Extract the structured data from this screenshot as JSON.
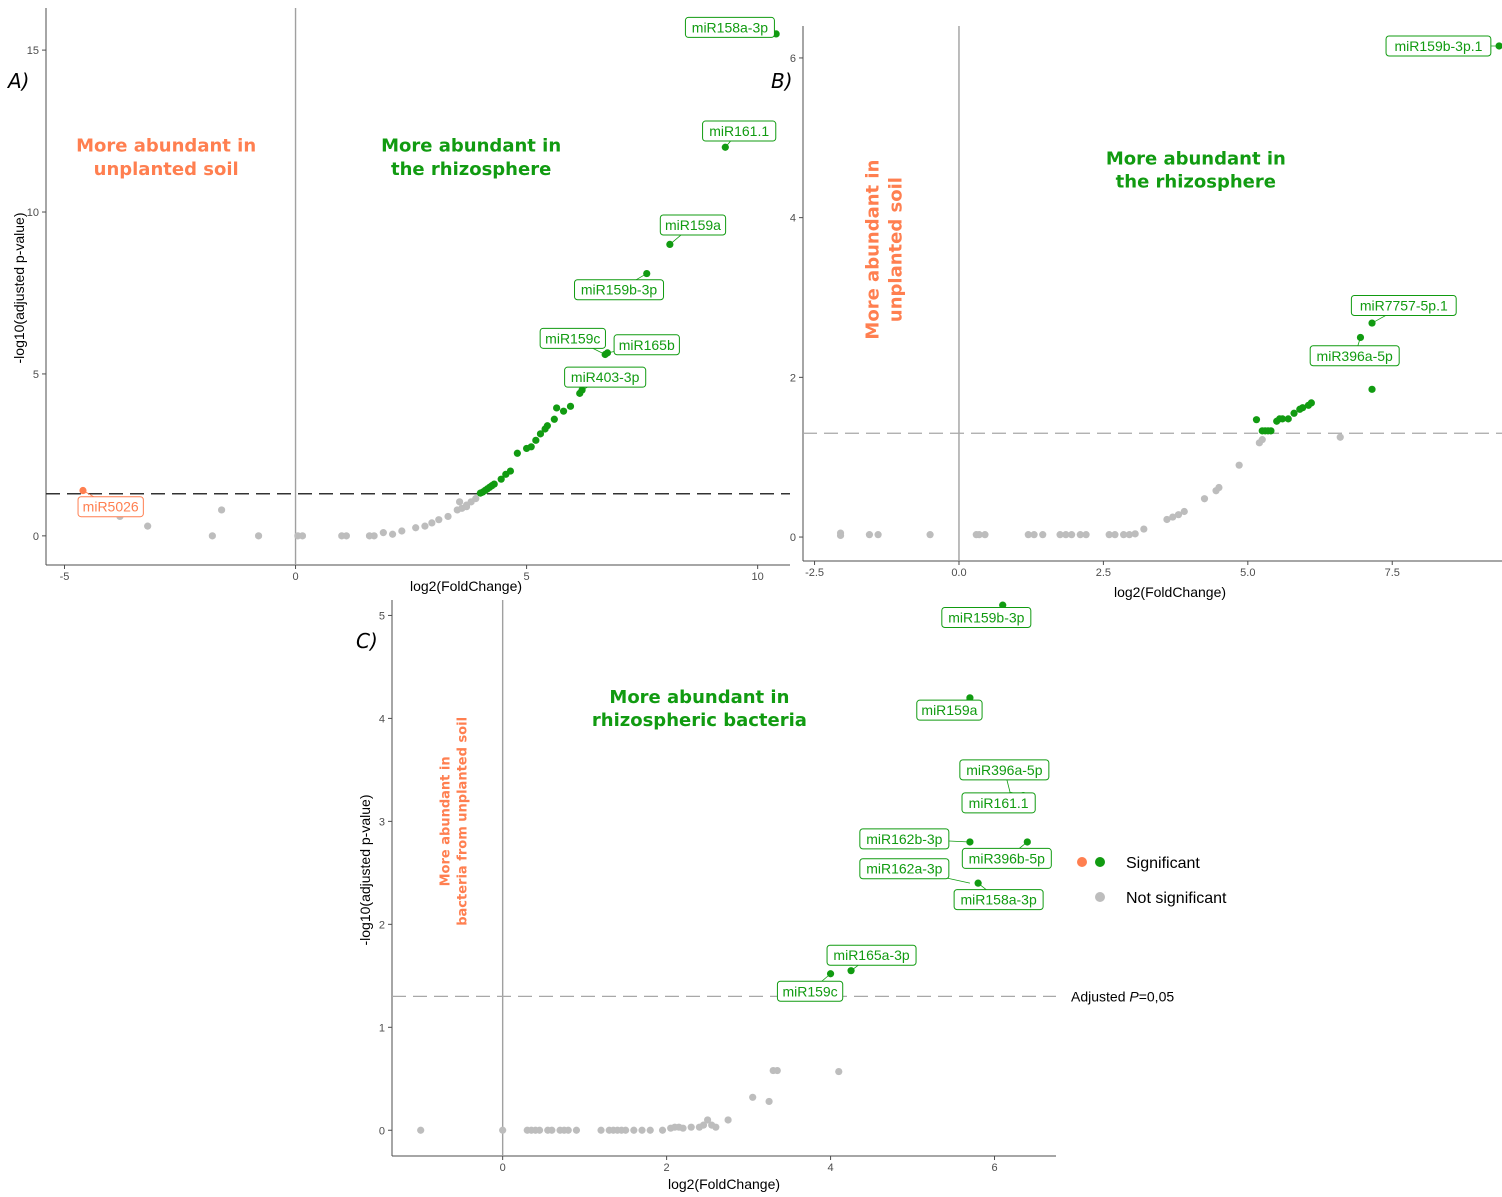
{
  "colors": {
    "significant": "#119b11",
    "significant_down": "#ff7f50",
    "not_significant": "#bdbdbd",
    "axis": "#4d4d4d",
    "threshold_solid": "#333333",
    "threshold_light": "#a8a8a8"
  },
  "legend": {
    "significant": "Significant",
    "not_significant": "Not significant"
  },
  "threshold_label": {
    "prefix": "Adjusted ",
    "italic": "P",
    "suffix": "=0,05"
  },
  "chart_data": [
    {
      "panel": "A)",
      "type": "scatter",
      "xlabel": "log2(FoldChange)",
      "ylabel": "-log10(adjusted p-value)",
      "xlim": [
        -5.4,
        10.7
      ],
      "ylim": [
        -0.9,
        16.3
      ],
      "xticks": [
        -5,
        0,
        5,
        10
      ],
      "yticks": [
        0,
        5,
        10,
        15
      ],
      "threshold": 1.3,
      "threshold_style": "dark",
      "region_labels": [
        {
          "lines": [
            "More abundant in",
            "unplanted soil"
          ],
          "color": "#ff7f50",
          "x": -2.8,
          "y": 11.7,
          "size": 18,
          "rotate": false
        },
        {
          "lines": [
            "More abundant in",
            "the rhizosphere"
          ],
          "color": "#119b11",
          "x": 3.8,
          "y": 11.7,
          "size": 18,
          "rotate": false
        }
      ],
      "points_sig_down": [
        [
          -4.6,
          1.4
        ]
      ],
      "points_sig": [
        [
          10.4,
          15.5
        ],
        [
          9.3,
          12.0
        ],
        [
          8.1,
          9.0
        ],
        [
          7.6,
          8.1
        ],
        [
          6.75,
          5.65
        ],
        [
          6.7,
          5.6
        ],
        [
          6.2,
          4.5
        ],
        [
          6.15,
          4.4
        ],
        [
          5.95,
          4.0
        ],
        [
          5.8,
          3.85
        ],
        [
          5.65,
          3.95
        ],
        [
          5.6,
          3.6
        ],
        [
          5.45,
          3.4
        ],
        [
          5.4,
          3.3
        ],
        [
          5.3,
          3.15
        ],
        [
          5.2,
          2.95
        ],
        [
          5.1,
          2.75
        ],
        [
          5.0,
          2.7
        ],
        [
          4.8,
          2.55
        ],
        [
          4.65,
          2.0
        ],
        [
          4.55,
          1.9
        ],
        [
          4.45,
          1.75
        ],
        [
          4.3,
          1.6
        ],
        [
          4.25,
          1.55
        ],
        [
          4.2,
          1.5
        ],
        [
          4.15,
          1.45
        ],
        [
          4.1,
          1.4
        ],
        [
          4.05,
          1.35
        ],
        [
          4.0,
          1.32
        ]
      ],
      "points_ns": [
        [
          -3.2,
          0.3
        ],
        [
          -1.6,
          0.8
        ],
        [
          -1.8,
          0.0
        ],
        [
          -0.8,
          0.0
        ],
        [
          0.05,
          0.0
        ],
        [
          0.15,
          0.0
        ],
        [
          1.0,
          0.0
        ],
        [
          1.1,
          0.0
        ],
        [
          1.6,
          0.0
        ],
        [
          1.7,
          0.0
        ],
        [
          1.9,
          0.1
        ],
        [
          2.1,
          0.05
        ],
        [
          2.3,
          0.15
        ],
        [
          2.6,
          0.25
        ],
        [
          2.8,
          0.3
        ],
        [
          2.95,
          0.4
        ],
        [
          3.1,
          0.5
        ],
        [
          3.3,
          0.6
        ],
        [
          3.5,
          0.8
        ],
        [
          3.6,
          0.85
        ],
        [
          3.7,
          0.95
        ],
        [
          3.8,
          1.05
        ],
        [
          3.9,
          1.15
        ],
        [
          3.55,
          1.05
        ],
        [
          3.7,
          0.9
        ],
        [
          -3.8,
          0.6
        ]
      ],
      "labels": [
        {
          "text": "miR5026",
          "px": -4.6,
          "py": 1.4,
          "lx": -4.0,
          "ly": 0.9,
          "color": "#ff7f50"
        },
        {
          "text": "miR158a-3p",
          "px": 10.4,
          "py": 15.5,
          "lx": 9.4,
          "ly": 15.7,
          "color": "#119b11"
        },
        {
          "text": "miR161.1",
          "px": 9.3,
          "py": 12.0,
          "lx": 9.6,
          "ly": 12.5,
          "color": "#119b11"
        },
        {
          "text": "miR159a",
          "px": 8.1,
          "py": 9.0,
          "lx": 8.6,
          "ly": 9.6,
          "color": "#119b11"
        },
        {
          "text": "miR159b-3p",
          "px": 7.6,
          "py": 8.1,
          "lx": 7.0,
          "ly": 7.6,
          "color": "#119b11"
        },
        {
          "text": "miR159c",
          "px": 6.7,
          "py": 5.6,
          "lx": 6.0,
          "ly": 6.1,
          "color": "#119b11"
        },
        {
          "text": "miR165b",
          "px": 6.75,
          "py": 5.65,
          "lx": 7.6,
          "ly": 5.9,
          "color": "#119b11"
        },
        {
          "text": "miR403-3p",
          "px": 6.2,
          "py": 4.5,
          "lx": 6.7,
          "ly": 4.9,
          "color": "#119b11"
        }
      ]
    },
    {
      "panel": "B)",
      "type": "scatter",
      "xlabel": "log2(FoldChange)",
      "ylabel": "",
      "xlim": [
        -2.7,
        9.4
      ],
      "ylim": [
        -0.3,
        6.4
      ],
      "xticks": [
        -2.5,
        0.0,
        2.5,
        5.0,
        7.5
      ],
      "tick_decimals": 1,
      "yticks": [
        0,
        2,
        4,
        6
      ],
      "threshold": 1.3,
      "threshold_style": "light",
      "region_labels": [
        {
          "lines": [
            "More abundant in",
            "unplanted soil"
          ],
          "color": "#ff7f50",
          "x": -1.3,
          "y": 3.6,
          "size": 18,
          "rotate": true
        },
        {
          "lines": [
            "More abundant in",
            "the rhizosphere"
          ],
          "color": "#119b11",
          "x": 4.1,
          "y": 4.6,
          "size": 18,
          "rotate": false
        }
      ],
      "points_sig_down": [],
      "points_sig": [
        [
          9.35,
          6.15
        ],
        [
          7.15,
          2.68
        ],
        [
          6.95,
          2.5
        ],
        [
          7.15,
          1.85
        ],
        [
          6.1,
          1.68
        ],
        [
          6.05,
          1.65
        ],
        [
          5.95,
          1.62
        ],
        [
          5.9,
          1.6
        ],
        [
          5.8,
          1.55
        ],
        [
          5.7,
          1.48
        ],
        [
          5.6,
          1.48
        ],
        [
          5.55,
          1.48
        ],
        [
          5.5,
          1.45
        ],
        [
          5.4,
          1.33
        ],
        [
          5.35,
          1.33
        ],
        [
          5.3,
          1.33
        ],
        [
          5.25,
          1.33
        ],
        [
          5.15,
          1.47
        ]
      ],
      "points_ns": [
        [
          -2.05,
          0.05
        ],
        [
          -2.05,
          0.02
        ],
        [
          -1.55,
          0.03
        ],
        [
          -1.4,
          0.03
        ],
        [
          -0.5,
          0.03
        ],
        [
          0.3,
          0.03
        ],
        [
          0.35,
          0.03
        ],
        [
          0.45,
          0.03
        ],
        [
          1.2,
          0.03
        ],
        [
          1.3,
          0.03
        ],
        [
          1.45,
          0.03
        ],
        [
          1.75,
          0.03
        ],
        [
          1.85,
          0.03
        ],
        [
          1.95,
          0.03
        ],
        [
          2.1,
          0.03
        ],
        [
          2.2,
          0.03
        ],
        [
          2.6,
          0.03
        ],
        [
          2.7,
          0.03
        ],
        [
          2.85,
          0.03
        ],
        [
          2.95,
          0.03
        ],
        [
          3.05,
          0.04
        ],
        [
          3.2,
          0.1
        ],
        [
          3.6,
          0.22
        ],
        [
          3.7,
          0.25
        ],
        [
          3.8,
          0.28
        ],
        [
          3.9,
          0.32
        ],
        [
          4.25,
          0.48
        ],
        [
          4.45,
          0.58
        ],
        [
          4.5,
          0.62
        ],
        [
          4.85,
          0.9
        ],
        [
          5.2,
          1.18
        ],
        [
          5.25,
          1.22
        ],
        [
          6.6,
          1.25
        ]
      ],
      "labels": [
        {
          "text": "miR159b-3p.1",
          "px": 9.35,
          "py": 6.15,
          "lx": 8.3,
          "ly": 6.15,
          "color": "#119b11"
        },
        {
          "text": "miR7757-5p.1",
          "px": 7.15,
          "py": 2.68,
          "lx": 7.7,
          "ly": 2.9,
          "color": "#119b11"
        },
        {
          "text": "miR396a-5p",
          "px": 6.95,
          "py": 2.5,
          "lx": 6.85,
          "ly": 2.27,
          "color": "#119b11"
        }
      ]
    },
    {
      "panel": "C)",
      "type": "scatter",
      "xlabel": "log2(FoldChange)",
      "ylabel": "-log10(adjusted p-value)",
      "xlim": [
        -1.35,
        6.75
      ],
      "ylim": [
        -0.25,
        5.15
      ],
      "xticks": [
        0,
        2,
        4,
        6
      ],
      "yticks": [
        0,
        1,
        2,
        3,
        4,
        5
      ],
      "threshold": 1.3,
      "threshold_style": "light",
      "threshold_text": true,
      "region_labels": [
        {
          "lines": [
            "More abundant in",
            "bacteria from unplanted soil"
          ],
          "color": "#ff7f50",
          "x": -0.6,
          "y": 3.0,
          "size": 13,
          "rotate": true
        },
        {
          "lines": [
            "More abundant in",
            "rhizospheric bacteria"
          ],
          "color": "#119b11",
          "x": 2.4,
          "y": 4.1,
          "size": 18,
          "rotate": false
        }
      ],
      "points_sig_down": [],
      "points_sig": [
        [
          6.1,
          5.1
        ],
        [
          5.7,
          4.2
        ],
        [
          6.2,
          3.25
        ],
        [
          6.35,
          3.25
        ],
        [
          5.7,
          2.8
        ],
        [
          6.4,
          2.8
        ],
        [
          5.8,
          2.4
        ],
        [
          4.0,
          1.52
        ],
        [
          4.25,
          1.55
        ]
      ],
      "points_ns": [
        [
          4.1,
          1.3
        ],
        [
          -1.0,
          0.0
        ],
        [
          0.0,
          0.0
        ],
        [
          0.3,
          0.0
        ],
        [
          0.35,
          0.0
        ],
        [
          0.4,
          0.0
        ],
        [
          0.45,
          0.0
        ],
        [
          0.55,
          0.0
        ],
        [
          0.6,
          0.0
        ],
        [
          0.7,
          0.0
        ],
        [
          0.75,
          0.0
        ],
        [
          0.8,
          0.0
        ],
        [
          0.9,
          0.0
        ],
        [
          1.2,
          0.0
        ],
        [
          1.3,
          0.0
        ],
        [
          1.35,
          0.0
        ],
        [
          1.4,
          0.0
        ],
        [
          1.45,
          0.0
        ],
        [
          1.5,
          0.0
        ],
        [
          1.6,
          0.0
        ],
        [
          1.7,
          0.0
        ],
        [
          1.8,
          0.0
        ],
        [
          1.95,
          0.0
        ],
        [
          2.05,
          0.02
        ],
        [
          2.1,
          0.03
        ],
        [
          2.15,
          0.03
        ],
        [
          2.2,
          0.02
        ],
        [
          2.3,
          0.03
        ],
        [
          2.4,
          0.03
        ],
        [
          2.45,
          0.05
        ],
        [
          2.5,
          0.1
        ],
        [
          2.55,
          0.05
        ],
        [
          2.6,
          0.03
        ],
        [
          2.75,
          0.1
        ],
        [
          3.05,
          0.32
        ],
        [
          3.25,
          0.28
        ],
        [
          3.3,
          0.58
        ],
        [
          3.35,
          0.58
        ],
        [
          4.1,
          0.57
        ]
      ],
      "labels": [
        {
          "text": "miR159b-3p",
          "px": 6.1,
          "py": 5.1,
          "lx": 5.9,
          "ly": 4.98,
          "color": "#119b11"
        },
        {
          "text": "miR159a",
          "px": 5.7,
          "py": 4.2,
          "lx": 5.45,
          "ly": 4.08,
          "color": "#119b11"
        },
        {
          "text": "miR396a-5p",
          "px": 6.2,
          "py": 3.25,
          "lx": 6.12,
          "ly": 3.5,
          "color": "#119b11"
        },
        {
          "text": "miR161.1",
          "px": 6.2,
          "py": 3.25,
          "lx": 6.05,
          "ly": 3.18,
          "color": "#119b11"
        },
        {
          "text": "miR162b-3p",
          "px": 5.7,
          "py": 2.8,
          "lx": 4.9,
          "ly": 2.83,
          "color": "#119b11"
        },
        {
          "text": "miR396b-5p",
          "px": 6.4,
          "py": 2.8,
          "lx": 6.15,
          "ly": 2.64,
          "color": "#119b11"
        },
        {
          "text": "miR162a-3p",
          "px": 5.7,
          "py": 2.4,
          "lx": 4.9,
          "ly": 2.54,
          "color": "#119b11"
        },
        {
          "text": "miR158a-3p",
          "px": 5.8,
          "py": 2.4,
          "lx": 6.05,
          "ly": 2.24,
          "color": "#119b11"
        },
        {
          "text": "miR165a-3p",
          "px": 4.25,
          "py": 1.55,
          "lx": 4.5,
          "ly": 1.7,
          "color": "#119b11"
        },
        {
          "text": "miR159c",
          "px": 4.0,
          "py": 1.52,
          "lx": 3.75,
          "ly": 1.35,
          "color": "#119b11"
        }
      ]
    }
  ]
}
